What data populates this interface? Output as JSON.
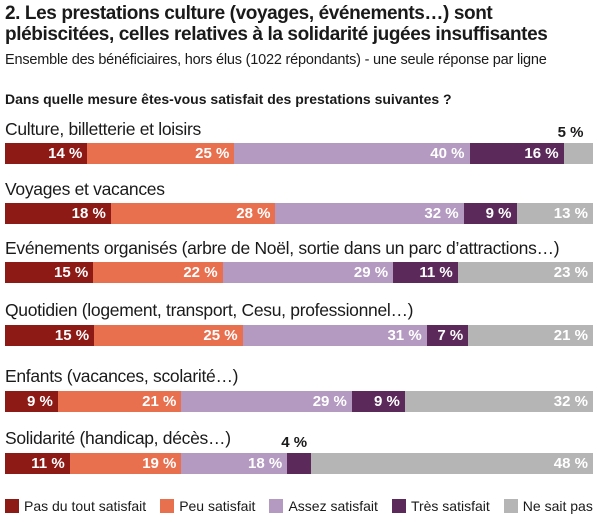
{
  "header": {
    "title": "2. Les prestations culture (voyages, événements…) sont plébiscitées, celles relatives à la solidarité jugées insuffisantes",
    "subtitle": "Ensemble des bénéficiaires, hors élus (1022 répondants) - une seule réponse par ligne",
    "question": "Dans quelle mesure êtes-vous satisfait des prestations suivantes ?"
  },
  "colors": {
    "pas_du_tout": "#8e1a16",
    "peu": "#e8704f",
    "assez": "#b49ac1",
    "tres": "#5b2a5a",
    "ne_sait_pas": "#b5b5b5"
  },
  "chart_data": {
    "type": "bar",
    "orientation": "horizontal",
    "stacked": true,
    "categories": [
      "Culture, billetterie et loisirs",
      "Voyages et vacances",
      "Evénements organisés (arbre de Noël, sortie dans un parc d’attractions…)",
      "Quotidien (logement, transport, Cesu, professionnel…)",
      "Enfants (vacances, scolarité…)",
      "Solidarité (handicap, décès…)"
    ],
    "series": [
      {
        "name": "Pas du tout satisfait",
        "values": [
          14,
          18,
          15,
          15,
          9,
          11
        ],
        "labels": [
          "14 %",
          "18 %",
          "15 %",
          "15 %",
          "9 %",
          "11 %"
        ]
      },
      {
        "name": "Peu satisfait",
        "values": [
          25,
          28,
          22,
          25,
          21,
          19
        ],
        "labels": [
          "25 %",
          "28 %",
          "22 %",
          "25 %",
          "21 %",
          "19 %"
        ]
      },
      {
        "name": "Assez satisfait",
        "values": [
          40,
          32,
          29,
          31,
          29,
          18
        ],
        "labels": [
          "40 %",
          "32 %",
          "29 %",
          "31 %",
          "29 %",
          "18 %"
        ]
      },
      {
        "name": "Très satisfait",
        "values": [
          16,
          9,
          11,
          7,
          9,
          4
        ],
        "labels": [
          "16 %",
          "9 %",
          "11 %",
          "7 %",
          "9 %",
          "4 %"
        ]
      },
      {
        "name": "Ne sait pas",
        "values": [
          5,
          13,
          23,
          21,
          32,
          48
        ],
        "labels": [
          "5 %",
          "13 %",
          "23 %",
          "21 %",
          "32 %",
          "48 %"
        ]
      }
    ],
    "unit": "%"
  }
}
